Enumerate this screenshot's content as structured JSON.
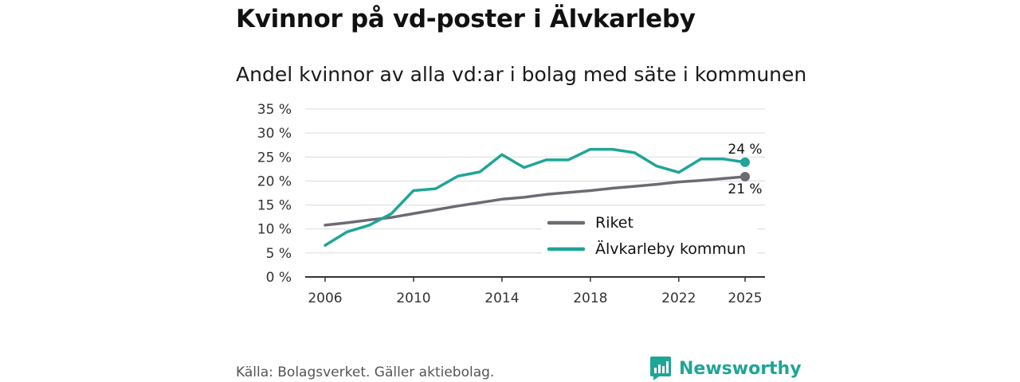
{
  "header": {
    "title": "Kvinnor på vd-poster i Älvkarleby",
    "subtitle": "Andel kvinnor av alla vd:ar i bolag med säte i kommunen"
  },
  "chart_data": {
    "type": "line",
    "title": "Kvinnor på vd-poster i Älvkarleby",
    "subtitle": "Andel kvinnor av alla vd:ar i bolag med säte i kommunen",
    "xlabel": "",
    "ylabel": "",
    "x": [
      2006,
      2007,
      2008,
      2009,
      2010,
      2011,
      2012,
      2013,
      2014,
      2015,
      2016,
      2017,
      2018,
      2019,
      2020,
      2021,
      2022,
      2023,
      2024,
      2025
    ],
    "xticks": [
      "2006",
      "2010",
      "2014",
      "2018",
      "2022",
      "2025"
    ],
    "ylim": [
      0,
      35
    ],
    "yticks": [
      "0 %",
      "5 %",
      "10 %",
      "15 %",
      "20 %",
      "25 %",
      "30 %",
      "35 %"
    ],
    "grid": true,
    "legend_position": "bottom-right",
    "series": [
      {
        "name": "Riket",
        "color": "#6d6a72",
        "values": [
          10.8,
          11.3,
          11.9,
          12.4,
          13.2,
          14.0,
          14.8,
          15.5,
          16.2,
          16.6,
          17.2,
          17.6,
          18.0,
          18.5,
          18.9,
          19.3,
          19.8,
          20.1,
          20.5,
          20.9
        ],
        "end_label": "21 %"
      },
      {
        "name": "Älvkarleby kommun",
        "color": "#1fa597",
        "values": [
          6.6,
          9.4,
          10.8,
          13.2,
          18.0,
          18.4,
          21.0,
          21.9,
          25.5,
          22.8,
          24.4,
          24.4,
          26.6,
          26.6,
          25.9,
          23.1,
          21.8,
          24.6,
          24.6,
          23.9
        ],
        "end_label": "24 %"
      }
    ]
  },
  "footer": {
    "source": "Källa: Bolagsverket. Gäller aktiebolag.",
    "brand": "Newsworthy"
  }
}
